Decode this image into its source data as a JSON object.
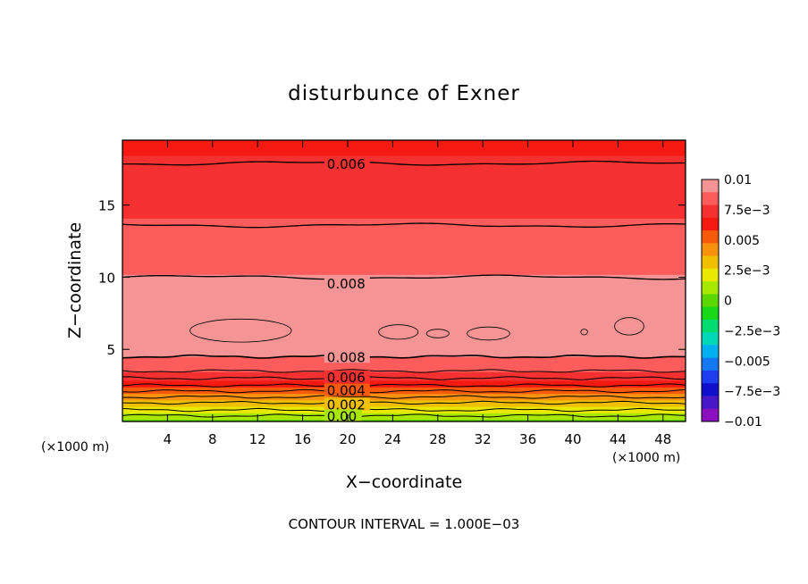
{
  "chart_data": {
    "type": "heatmap",
    "subtype": "filled-contour",
    "title": "disturbunce of Exner",
    "xlabel": "X−coordinate",
    "ylabel": "Z−coordinate",
    "x_unit_left": "(×1000 m)",
    "x_unit_right": "(×1000 m)",
    "footer": "CONTOUR INTERVAL = 1.000E−03",
    "xlim": [
      0,
      50
    ],
    "ylim": [
      0,
      19.5
    ],
    "x_ticks": [
      4,
      8,
      12,
      16,
      20,
      24,
      28,
      32,
      36,
      40,
      44,
      48
    ],
    "y_ticks": [
      5,
      10,
      15
    ],
    "contour_interval": 0.001,
    "colorbar": {
      "min": -0.01,
      "max": 0.01,
      "labels": [
        "0.01",
        "7.5e−3",
        "0.005",
        "2.5e−3",
        "0",
        "−2.5e−3",
        "−0.005",
        "−7.5e−3",
        "−0.01"
      ],
      "label_values": [
        0.01,
        0.0075,
        0.005,
        0.0025,
        0,
        -0.0025,
        -0.005,
        -0.0075,
        -0.01
      ],
      "colors": [
        "#f49494",
        "#fc5c5c",
        "#f43030",
        "#f41a12",
        "#f85a0c",
        "#f8920c",
        "#f0c000",
        "#e8e800",
        "#a8e800",
        "#5ad800",
        "#18d818",
        "#00dc70",
        "#00d8b8",
        "#00b0f0",
        "#1478f0",
        "#1e3cf0",
        "#1010cc",
        "#4818c8",
        "#8a10c0"
      ]
    },
    "contour_levels": [
      0.001,
      0.002,
      0.003,
      0.004,
      0.005,
      0.006,
      0.007,
      0.008,
      0.009
    ],
    "level_heights_km": [
      0.4,
      0.8,
      1.3,
      1.7,
      2.1,
      2.5,
      3.0,
      3.5,
      4.5
    ],
    "upper_contours": [
      {
        "level": 0.009,
        "z_km": 10.0
      },
      {
        "level": 0.008,
        "z_km": 13.6
      },
      {
        "level": 0.007,
        "z_km": 17.9
      }
    ],
    "contour_labels": [
      {
        "text": "0.006",
        "x_km": 18.0,
        "z_km": 17.9
      },
      {
        "text": "0.008",
        "x_km": 18.0,
        "z_km": 9.6
      },
      {
        "text": "0.008",
        "x_km": 18.0,
        "z_km": 4.5
      },
      {
        "text": "0.006",
        "x_km": 18.0,
        "z_km": 3.1
      },
      {
        "text": "0.004",
        "x_km": 18.0,
        "z_km": 2.2
      },
      {
        "text": "0.002",
        "x_km": 18.0,
        "z_km": 1.2
      },
      {
        "text": "0.00",
        "x_km": 18.0,
        "z_km": 0.4
      }
    ],
    "max_regions": [
      {
        "level": 0.01,
        "x_center_km": 10.5,
        "z_center_km": 6.3,
        "width_km": 9.0,
        "height_km": 1.6
      },
      {
        "level": 0.01,
        "x_center_km": 24.5,
        "z_center_km": 6.2,
        "width_km": 3.5,
        "height_km": 1.0
      },
      {
        "level": 0.01,
        "x_center_km": 28.0,
        "z_center_km": 6.1,
        "width_km": 2.0,
        "height_km": 0.6
      },
      {
        "level": 0.01,
        "x_center_km": 32.5,
        "z_center_km": 6.1,
        "width_km": 3.8,
        "height_km": 0.9
      },
      {
        "level": 0.01,
        "x_center_km": 41.0,
        "z_center_km": 6.2,
        "width_km": 0.6,
        "height_km": 0.4
      },
      {
        "level": 0.01,
        "x_center_km": 45.0,
        "z_center_km": 6.6,
        "width_km": 2.6,
        "height_km": 1.2
      }
    ]
  }
}
